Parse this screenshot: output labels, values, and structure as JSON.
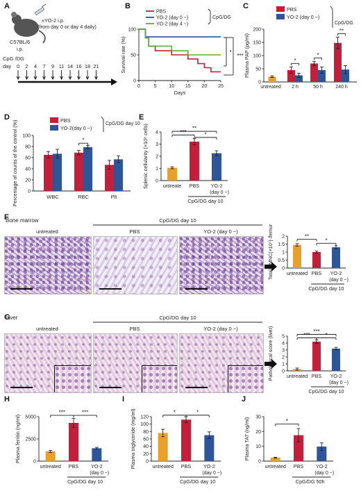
{
  "colors": {
    "pbs": "#c41e3a",
    "yo2": "#2e5597",
    "untreated": "#e8a02a",
    "survival_yo2_day4": "#5aae3c"
  },
  "panel_labels": [
    "A",
    "B",
    "C",
    "D",
    "E",
    "F",
    "G",
    "H",
    "I",
    "J"
  ],
  "schematic": {
    "mouse": "C57BL/6",
    "yo2_dose": "±YO-2 i.p.",
    "yo2_schedule": "(from day 0 or day 4 daily)",
    "cpg_label": "CpG /DG",
    "ip_label": "i.p.",
    "day_label": "day",
    "days": [
      "0",
      "2",
      "4",
      "7",
      "9",
      "11",
      "14",
      "16",
      "18",
      "21"
    ]
  },
  "micro": {
    "F": {
      "title": "Bone marrow",
      "group_header": "CpG/DG day 10",
      "captions": [
        "untreated",
        "PBS",
        "YO-2 (day 0 ~)"
      ]
    },
    "G": {
      "title": "Liver",
      "group_header": "CpG/DG day 10",
      "captions": [
        "untreated",
        "PBS",
        "YO-2 (day 0 ~)"
      ]
    }
  },
  "chart_data": [
    {
      "panel": "B",
      "type": "line",
      "xlabel": "Days",
      "ylabel": "Survival rate (%)",
      "xlim": [
        0,
        25
      ],
      "ylim": [
        0,
        100
      ],
      "xticks": [
        0,
        5,
        10,
        15,
        20,
        25
      ],
      "yticks": [
        0,
        50,
        100
      ],
      "legend_group_label": "CpG/DG",
      "series": [
        {
          "name": "PBS",
          "color": "#c41e3a",
          "x": [
            0,
            2,
            2,
            3,
            3,
            5,
            5,
            10,
            10,
            15,
            15,
            18,
            18,
            20,
            20,
            22,
            22,
            25
          ],
          "y": [
            100,
            100,
            83,
            83,
            67,
            67,
            58,
            58,
            50,
            50,
            42,
            42,
            33,
            33,
            25,
            25,
            17,
            17
          ]
        },
        {
          "name": "YO-2 (day 0 ~)",
          "color": "#2e5597",
          "x": [
            0,
            2,
            2,
            25
          ],
          "y": [
            100,
            100,
            85,
            85
          ]
        },
        {
          "name": "YO-2 (day 4 ~)",
          "color": "#5aae3c",
          "x": [
            0,
            2,
            2,
            3,
            3,
            10,
            10,
            15,
            15,
            25
          ],
          "y": [
            100,
            100,
            83,
            83,
            67,
            67,
            58,
            58,
            50,
            50
          ]
        }
      ],
      "significance": [
        "*",
        "***"
      ]
    },
    {
      "panel": "C",
      "type": "bar",
      "ylabel": "Plasma PAP (pg/ml)",
      "ylim": [
        0,
        200
      ],
      "yticks": [
        0,
        50,
        100,
        150,
        200
      ],
      "categories": [
        "untreated",
        "2 h",
        "50 h",
        "240 h"
      ],
      "legend_group_label": "CpG/DG",
      "series": [
        {
          "name": "PBS",
          "values": [
            null,
            45,
            70,
            148
          ],
          "errors": [
            null,
            12,
            8,
            22
          ]
        },
        {
          "name": "YO-2 (day 0 ~)",
          "values": [
            null,
            25,
            45,
            47
          ],
          "errors": [
            null,
            8,
            12,
            15
          ]
        }
      ],
      "untreated": {
        "value": 20,
        "error": 3
      },
      "significance": [
        "*",
        "*",
        "**"
      ]
    },
    {
      "panel": "D",
      "type": "bar",
      "ylabel": "Percentage of counts of the control (%)",
      "ylim": [
        0,
        100
      ],
      "yticks": [
        0,
        20,
        40,
        60,
        80,
        100
      ],
      "categories": [
        "WBC",
        "RBC",
        "Plt"
      ],
      "legend_group_label": "CpG/DG day 10",
      "series": [
        {
          "name": "PBS",
          "values": [
            65,
            69,
            47
          ],
          "errors": [
            6,
            4,
            8
          ]
        },
        {
          "name": "YO-2(day 0 ~)",
          "values": [
            67,
            79,
            57
          ],
          "errors": [
            8,
            3,
            6
          ]
        }
      ],
      "significance": [
        "*"
      ]
    },
    {
      "panel": "E",
      "type": "bar",
      "ylabel": "Splenic cellularity (×10⁸ cells)",
      "ylim": [
        0,
        4
      ],
      "yticks": [
        0,
        1,
        2,
        3,
        4
      ],
      "categories": [
        "untreate",
        "PBS",
        "YO-2 (day 0 ~)"
      ],
      "values": [
        1.05,
        3.2,
        2.25
      ],
      "errors": [
        0.08,
        0.25,
        0.2
      ],
      "group_label": "CpG/DG day 10",
      "significance": [
        "***",
        "**",
        "*"
      ]
    },
    {
      "panel": "F",
      "type": "bar",
      "ylabel": "Total BMNC(×10⁷) /femur",
      "ylim": [
        0,
        2
      ],
      "yticks": [
        0,
        0.5,
        1,
        1.5,
        2
      ],
      "categories": [
        "untreated",
        "PBS",
        "YO-2 (day 0 ~)"
      ],
      "values": [
        1.45,
        1.0,
        1.3
      ],
      "errors": [
        0.08,
        0.06,
        0.1
      ],
      "group_label": "CpG/DG day 10",
      "significance": [
        "**",
        "*"
      ]
    },
    {
      "panel": "G",
      "type": "bar",
      "ylabel": "Pathological score (liver)",
      "ylim": [
        0,
        5
      ],
      "yticks": [
        0,
        1,
        2,
        3,
        4,
        5
      ],
      "categories": [
        "untreated",
        "PBS",
        "YO-2 (day 0 ~)"
      ],
      "values": [
        0.25,
        4.2,
        3.2
      ],
      "errors": [
        0.15,
        0.25,
        0.18
      ],
      "group_label": "CpG/DG day 10",
      "significance": [
        "***",
        "***",
        "*"
      ]
    },
    {
      "panel": "H",
      "type": "bar",
      "ylabel": "Plasma ferritin (ng/ml)",
      "ylim": [
        0,
        5000
      ],
      "yticks": [
        0,
        2500,
        5000
      ],
      "categories": [
        "untreated",
        "PBS",
        "YO-2 (day 0 ~)"
      ],
      "values": [
        1100,
        4300,
        1450
      ],
      "errors": [
        120,
        500,
        100
      ],
      "group_label": "CpG/DG day 10",
      "significance": [
        "***",
        "***"
      ]
    },
    {
      "panel": "I",
      "type": "bar",
      "ylabel": "Plasma triglyceride (mg/ml)",
      "ylim": [
        0,
        120
      ],
      "yticks": [
        0,
        20,
        40,
        60,
        80,
        100,
        120
      ],
      "categories": [
        "untreated",
        "PBS",
        "YO-2 (day 0 ~)"
      ],
      "values": [
        76,
        112,
        70
      ],
      "errors": [
        10,
        8,
        9
      ],
      "group_label": "CpG/DG day 10",
      "significance": [
        "*",
        "*"
      ]
    },
    {
      "panel": "J",
      "type": "bar",
      "ylabel": "Plasma TAT (ng/ml)",
      "ylim": [
        0,
        30
      ],
      "yticks": [
        0,
        10,
        20,
        30
      ],
      "categories": [
        "untreated",
        "PBS",
        "YO-2 (day 0 ~)"
      ],
      "values": [
        2.3,
        17.5,
        9.8
      ],
      "errors": [
        0.3,
        4.5,
        2.5
      ],
      "group_label": "CpG/DG 50h",
      "significance": [
        "*"
      ]
    }
  ]
}
